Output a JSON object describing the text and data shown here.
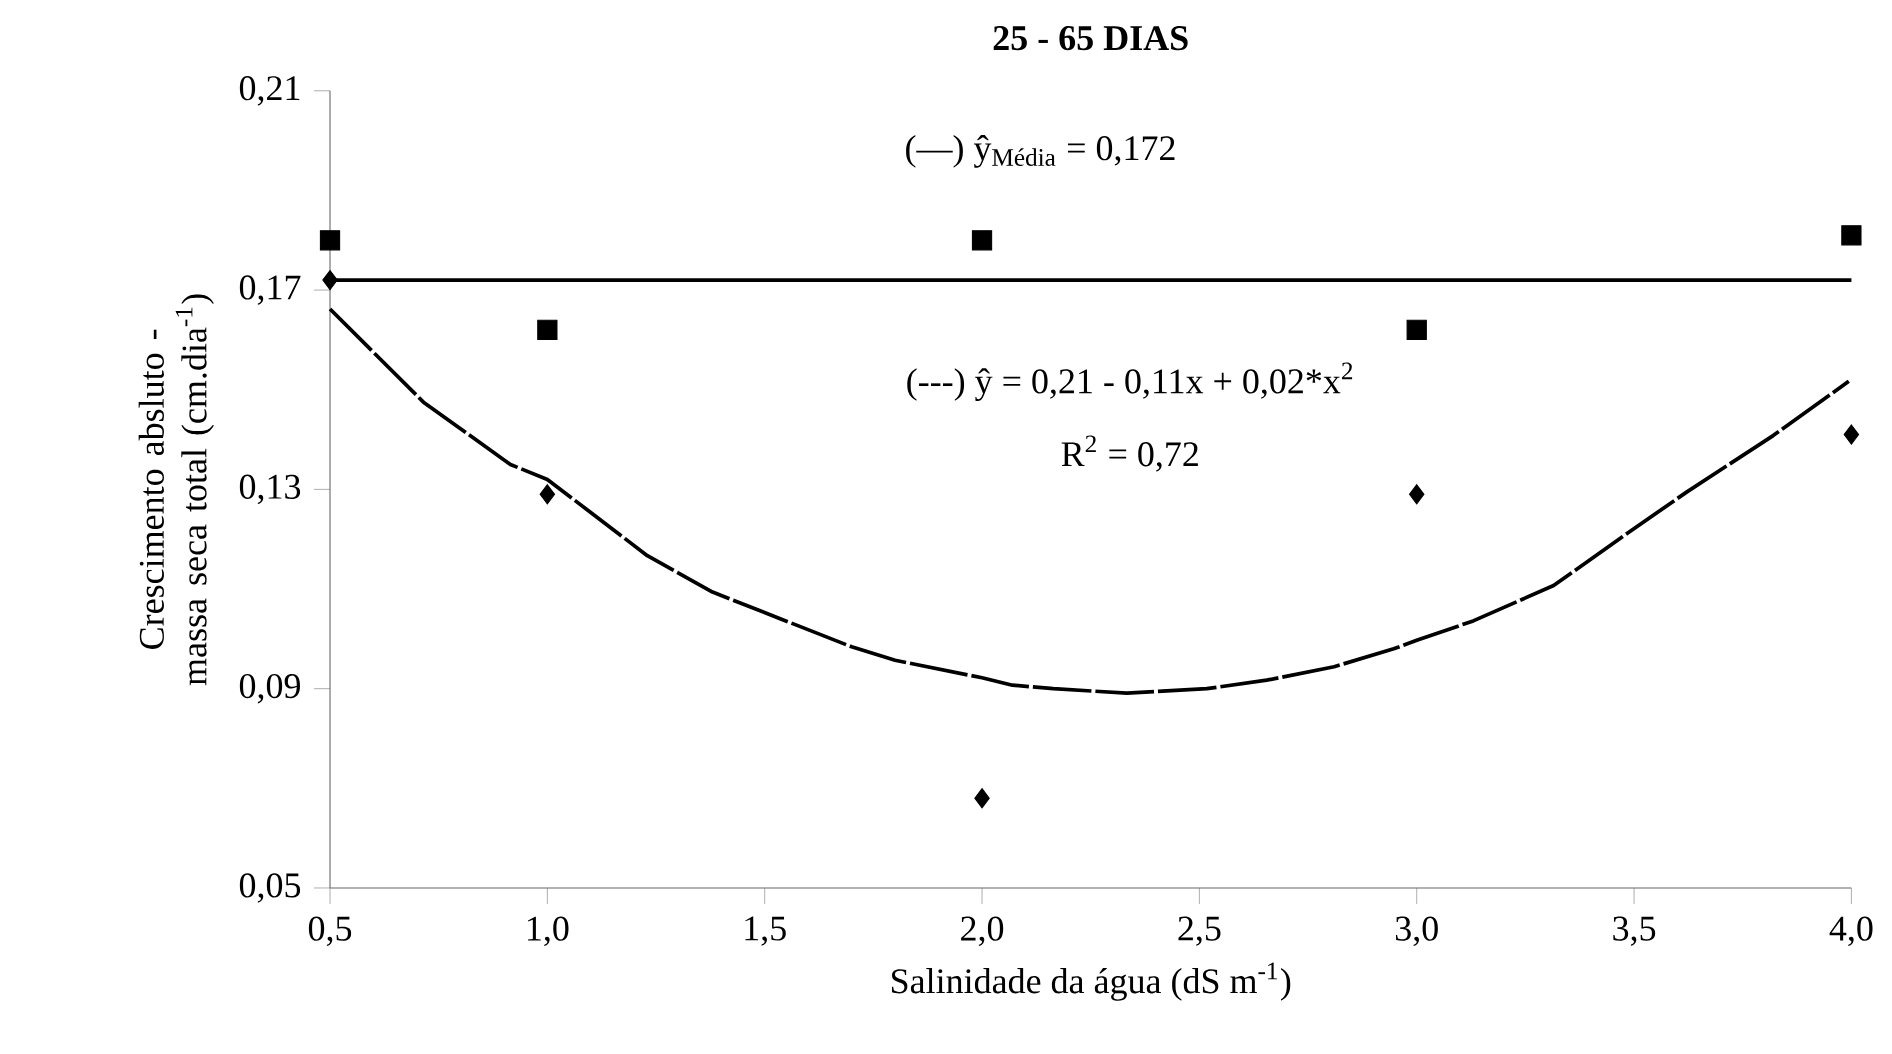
{
  "chart_data": {
    "type": "scatter",
    "title": "25 - 65 DIAS",
    "xlabel": "Salinidade da água (dS m$^{-1}$)",
    "ylabel": "Crescimento absluto - massa seca total (cm.dia$^{-1}$)",
    "annotations": [
      "(—) ŷ$_{Média}$ = 0,172",
      "(---) ŷ = 0,21 - 0,11x + 0,02*x$^{2}$",
      "R$^{2}$ = 0,72"
    ],
    "xlim": [
      0.5,
      4.0
    ],
    "ylim": [
      0.05,
      0.21
    ],
    "xticks": [
      {
        "value": 0.5,
        "label": "0,5"
      },
      {
        "value": 1.0,
        "label": "1,0"
      },
      {
        "value": 1.5,
        "label": "1,5"
      },
      {
        "value": 2.0,
        "label": "2,0"
      },
      {
        "value": 2.5,
        "label": "2,5"
      },
      {
        "value": 3.0,
        "label": "3,0"
      },
      {
        "value": 3.5,
        "label": "3,5"
      },
      {
        "value": 4.0,
        "label": "4,0"
      }
    ],
    "yticks": [
      {
        "value": 0.05,
        "label": "0,05"
      },
      {
        "value": 0.09,
        "label": "0,09"
      },
      {
        "value": 0.13,
        "label": "0,13"
      },
      {
        "value": 0.17,
        "label": "0,17"
      },
      {
        "value": 0.21,
        "label": "0,21"
      }
    ],
    "grid": false,
    "ref_lines": [
      {
        "axis": "y",
        "value": 0.172,
        "color": "#000000",
        "line_style": "solid"
      }
    ],
    "series": [
      {
        "marker": "square",
        "color": "#000000",
        "x": [
          0.5,
          1.0,
          2.0,
          3.0,
          4.0
        ],
        "values": [
          0.18,
          0.162,
          0.18,
          0.162,
          0.181
        ]
      },
      {
        "marker": "diamond",
        "color": "#000000",
        "x": [
          0.5,
          1.0,
          2.0,
          3.0,
          4.0
        ],
        "values": [
          0.172,
          0.129,
          0.068,
          0.129,
          0.141
        ]
      },
      {
        "type": "line",
        "marker": "none",
        "line_style": "dashed",
        "color": "#000000",
        "x": [
          0.5,
          0.715,
          0.915,
          1.0,
          1.23,
          1.38,
          1.537,
          1.7,
          1.8,
          2.0,
          2.07,
          2.164,
          2.333,
          2.517,
          2.655,
          2.81,
          2.947,
          3.0,
          3.13,
          3.315,
          3.483,
          3.62,
          3.82,
          3.994
        ],
        "values": [
          0.1662,
          0.1475,
          0.135,
          0.132,
          0.1167,
          0.1094,
          0.104,
          0.0984,
          0.0957,
          0.0922,
          0.0907,
          0.09,
          0.0891,
          0.09,
          0.0917,
          0.0944,
          0.098,
          0.0997,
          0.1036,
          0.1107,
          0.1211,
          0.1294,
          0.1408,
          0.1517
        ]
      }
    ]
  }
}
